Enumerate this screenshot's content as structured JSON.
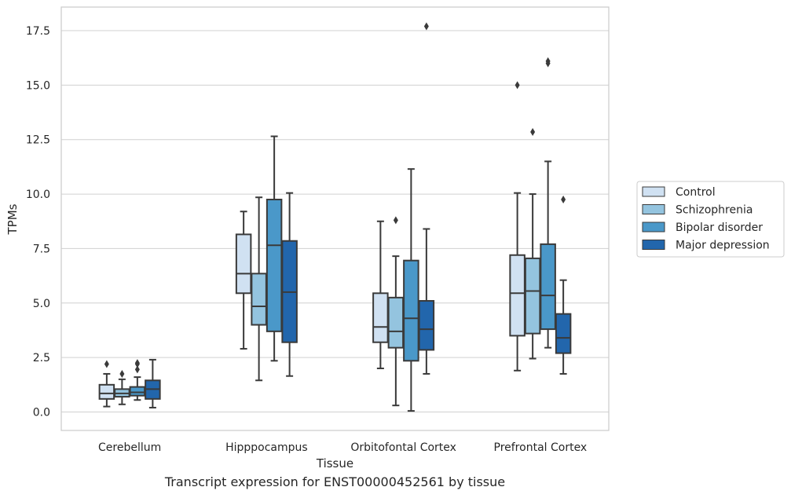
{
  "caption": "Transcript expression for ENST00000452561 by tissue",
  "chart_data": {
    "type": "box",
    "xlabel": "Tissue",
    "ylabel": "TPMs",
    "categories": [
      "Cerebellum",
      "Hipppocampus",
      "Orbitofontal Cortex",
      "Prefrontal Cortex"
    ],
    "ylim": [
      -0.8,
      18.6
    ],
    "yticks": [
      0.0,
      2.5,
      5.0,
      7.5,
      10.0,
      12.5,
      15.0,
      17.5
    ],
    "ytick_labels": [
      "0.0",
      "2.5",
      "5.0",
      "7.5",
      "10.0",
      "12.5",
      "15.0",
      "17.5"
    ],
    "grid": "horizontal",
    "legend_position": "right",
    "series": [
      {
        "name": "Control",
        "color": "#d0e1f2",
        "boxes": [
          {
            "whisker_low": 0.25,
            "q1": 0.6,
            "median": 0.85,
            "q3": 1.25,
            "whisker_high": 1.75,
            "outliers": [
              2.2
            ]
          },
          {
            "whisker_low": 2.9,
            "q1": 5.45,
            "median": 6.35,
            "q3": 8.15,
            "whisker_high": 9.2,
            "outliers": []
          },
          {
            "whisker_low": 2.0,
            "q1": 3.2,
            "median": 3.9,
            "q3": 5.45,
            "whisker_high": 8.75,
            "outliers": []
          },
          {
            "whisker_low": 1.9,
            "q1": 3.5,
            "median": 5.45,
            "q3": 7.2,
            "whisker_high": 10.05,
            "outliers": [
              15.0
            ]
          }
        ]
      },
      {
        "name": "Schizophrenia",
        "color": "#94c4df",
        "boxes": [
          {
            "whisker_low": 0.35,
            "q1": 0.7,
            "median": 0.85,
            "q3": 1.05,
            "whisker_high": 1.5,
            "outliers": [
              1.75
            ]
          },
          {
            "whisker_low": 1.45,
            "q1": 4.0,
            "median": 4.85,
            "q3": 6.35,
            "whisker_high": 9.85,
            "outliers": []
          },
          {
            "whisker_low": 0.3,
            "q1": 2.95,
            "median": 3.7,
            "q3": 5.25,
            "whisker_high": 7.15,
            "outliers": [
              8.8
            ]
          },
          {
            "whisker_low": 2.45,
            "q1": 3.6,
            "median": 5.55,
            "q3": 7.05,
            "whisker_high": 10.0,
            "outliers": [
              12.85
            ]
          }
        ]
      },
      {
        "name": "Bipolar disorder",
        "color": "#4a98c9",
        "boxes": [
          {
            "whisker_low": 0.55,
            "q1": 0.75,
            "median": 0.9,
            "q3": 1.15,
            "whisker_high": 1.6,
            "outliers": [
              1.95,
              2.2,
              2.25
            ]
          },
          {
            "whisker_low": 2.35,
            "q1": 3.7,
            "median": 7.65,
            "q3": 9.75,
            "whisker_high": 12.65,
            "outliers": []
          },
          {
            "whisker_low": 0.05,
            "q1": 2.35,
            "median": 4.3,
            "q3": 6.95,
            "whisker_high": 11.15,
            "outliers": []
          },
          {
            "whisker_low": 2.95,
            "q1": 3.8,
            "median": 5.35,
            "q3": 7.7,
            "whisker_high": 11.5,
            "outliers": [
              16.0,
              16.1
            ]
          }
        ]
      },
      {
        "name": "Major depression",
        "color": "#2266ac",
        "boxes": [
          {
            "whisker_low": 0.2,
            "q1": 0.6,
            "median": 1.05,
            "q3": 1.45,
            "whisker_high": 2.4,
            "outliers": []
          },
          {
            "whisker_low": 1.65,
            "q1": 3.2,
            "median": 5.5,
            "q3": 7.85,
            "whisker_high": 10.05,
            "outliers": []
          },
          {
            "whisker_low": 1.75,
            "q1": 2.85,
            "median": 3.8,
            "q3": 5.1,
            "whisker_high": 8.4,
            "outliers": [
              17.7
            ]
          },
          {
            "whisker_low": 1.75,
            "q1": 2.7,
            "median": 3.4,
            "q3": 4.5,
            "whisker_high": 6.05,
            "outliers": [
              9.75
            ]
          }
        ]
      }
    ]
  }
}
